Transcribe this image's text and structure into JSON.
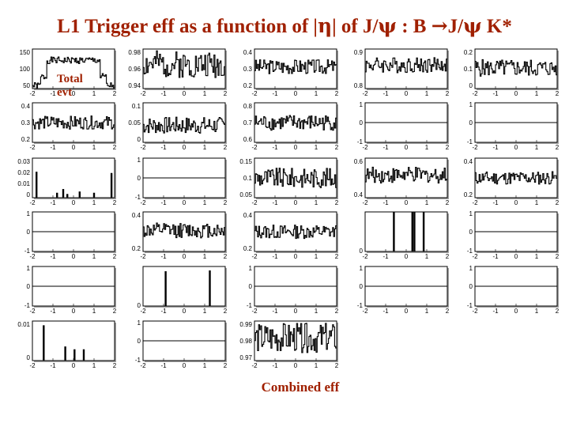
{
  "title": {
    "prefix": "L1 Trigger eff as a function of |",
    "eta": "η",
    "mid": "| of J/",
    "psi1": "ψ",
    "colon": " : B ",
    "arrow": "→",
    "jpsi": "J/",
    "psi2": "ψ",
    "suffix": " K*"
  },
  "overlay": {
    "line1": "Total",
    "line2": "evt"
  },
  "caption": "Combined eff",
  "colors": {
    "title": "#a02000",
    "line": "#000000",
    "frame": "#000000",
    "fill_shadow": "#a0a0a0"
  },
  "chart_data": {
    "type": "line",
    "x_ticks": [
      "-2",
      "-1",
      "0",
      "1",
      "2"
    ],
    "xlim": [
      -2,
      2
    ],
    "panels": [
      {
        "row": 0,
        "col": 0,
        "kind": "noise",
        "label": "Total evt",
        "yticks": [
          "150",
          "100",
          "50"
        ],
        "ylim": [
          30,
          170
        ],
        "profile": "plateau",
        "mean": 130,
        "amp": 12,
        "seed": 1
      },
      {
        "row": 0,
        "col": 1,
        "kind": "noise",
        "yticks": [
          "0.98",
          "0.96",
          "0.94"
        ],
        "ylim": [
          0.935,
          1.0
        ],
        "profile": "flat",
        "mean": 0.975,
        "amp": 0.022,
        "seed": 2
      },
      {
        "row": 0,
        "col": 2,
        "kind": "noise",
        "yticks": [
          "0.4",
          "0.3",
          "0.2"
        ],
        "ylim": [
          0.15,
          0.42
        ],
        "profile": "flat",
        "mean": 0.3,
        "amp": 0.05,
        "seed": 3
      },
      {
        "row": 0,
        "col": 3,
        "kind": "noise",
        "yticks": [
          "0.9",
          "0.8"
        ],
        "ylim": [
          0.75,
          0.95
        ],
        "profile": "flat",
        "mean": 0.87,
        "amp": 0.04,
        "seed": 4
      },
      {
        "row": 0,
        "col": 4,
        "kind": "noise",
        "yticks": [
          "0.2",
          "0.1",
          "0"
        ],
        "ylim": [
          0,
          0.23
        ],
        "profile": "flat",
        "mean": 0.12,
        "amp": 0.05,
        "seed": 5
      },
      {
        "row": 1,
        "col": 0,
        "kind": "noise",
        "yticks": [
          "0.4",
          "0.3",
          "0.2"
        ],
        "ylim": [
          0.15,
          0.45
        ],
        "profile": "flat",
        "mean": 0.3,
        "amp": 0.05,
        "seed": 6
      },
      {
        "row": 1,
        "col": 1,
        "kind": "noise",
        "yticks": [
          "0.1",
          "0.05",
          "0"
        ],
        "ylim": [
          0,
          0.14
        ],
        "profile": "flat",
        "mean": 0.06,
        "amp": 0.03,
        "seed": 7
      },
      {
        "row": 1,
        "col": 2,
        "kind": "noise",
        "yticks": [
          "0.8",
          "0.7",
          "0.6"
        ],
        "ylim": [
          0.55,
          0.85
        ],
        "profile": "flat",
        "mean": 0.7,
        "amp": 0.06,
        "seed": 8
      },
      {
        "row": 1,
        "col": 3,
        "kind": "empty",
        "yticks": [
          "1",
          "0",
          "-1"
        ],
        "ylim": [
          -1,
          1
        ]
      },
      {
        "row": 1,
        "col": 4,
        "kind": "empty",
        "yticks": [
          "1",
          "0",
          "-1"
        ],
        "ylim": [
          -1,
          1
        ]
      },
      {
        "row": 2,
        "col": 0,
        "kind": "spikes",
        "yticks": [
          "0.03",
          "0.02",
          "0.01",
          "0"
        ],
        "ylim": [
          0,
          0.032
        ],
        "spikes": [
          [
            -1.8,
            0.021
          ],
          [
            -0.8,
            0.004
          ],
          [
            -0.5,
            0.007
          ],
          [
            -0.3,
            0.003
          ],
          [
            0.3,
            0.005
          ],
          [
            1.0,
            0.004
          ],
          [
            1.85,
            0.02
          ]
        ]
      },
      {
        "row": 2,
        "col": 1,
        "kind": "empty",
        "yticks": [
          "1",
          "0",
          "-1"
        ],
        "ylim": [
          -1,
          1
        ]
      },
      {
        "row": 2,
        "col": 2,
        "kind": "noise",
        "yticks": [
          "0.15",
          "0.1",
          "0.05"
        ],
        "ylim": [
          0,
          0.18
        ],
        "profile": "flat",
        "mean": 0.09,
        "amp": 0.045,
        "seed": 9
      },
      {
        "row": 2,
        "col": 3,
        "kind": "noise",
        "yticks": [
          "0.6",
          "0.4"
        ],
        "ylim": [
          0.3,
          0.65
        ],
        "profile": "flat",
        "mean": 0.5,
        "amp": 0.07,
        "seed": 10
      },
      {
        "row": 2,
        "col": 4,
        "kind": "noise",
        "yticks": [
          "0.4",
          "0.2"
        ],
        "ylim": [
          0.15,
          0.45
        ],
        "profile": "flat",
        "mean": 0.3,
        "amp": 0.05,
        "seed": 11
      },
      {
        "row": 3,
        "col": 0,
        "kind": "empty",
        "yticks": [
          "1",
          "0",
          "-1"
        ],
        "ylim": [
          -1,
          1
        ]
      },
      {
        "row": 3,
        "col": 1,
        "kind": "noise",
        "yticks": [
          "0.4",
          "0.2"
        ],
        "ylim": [
          0.18,
          0.5
        ],
        "profile": "flat",
        "mean": 0.35,
        "amp": 0.06,
        "seed": 12
      },
      {
        "row": 3,
        "col": 2,
        "kind": "noise",
        "yticks": [
          "0.4",
          "0.2"
        ],
        "ylim": [
          0.1,
          0.5
        ],
        "profile": "flat",
        "mean": 0.3,
        "amp": 0.07,
        "seed": 13
      },
      {
        "row": 3,
        "col": 3,
        "kind": "spikes",
        "yticks": [
          "0"
        ],
        "ylim": [
          0,
          1
        ],
        "spikes": [
          [
            -0.6,
            1.0
          ],
          [
            0.3,
            1.0
          ],
          [
            0.4,
            1.0
          ],
          [
            0.85,
            1.0
          ]
        ]
      },
      {
        "row": 3,
        "col": 4,
        "kind": "empty",
        "yticks": [
          "1",
          "0",
          "-1"
        ],
        "ylim": [
          -1,
          1
        ]
      },
      {
        "row": 4,
        "col": 0,
        "kind": "empty",
        "yticks": [
          "1",
          "0",
          "-1"
        ],
        "ylim": [
          -1,
          1
        ]
      },
      {
        "row": 4,
        "col": 1,
        "kind": "spikes",
        "yticks": [
          "0"
        ],
        "ylim": [
          0,
          1
        ],
        "spikes": [
          [
            -0.9,
            0.88
          ],
          [
            1.25,
            0.9
          ]
        ]
      },
      {
        "row": 4,
        "col": 2,
        "kind": "empty",
        "yticks": [
          "1",
          "0",
          "-1"
        ],
        "ylim": [
          -1,
          1
        ]
      },
      {
        "row": 4,
        "col": 3,
        "kind": "empty",
        "yticks": [
          "1",
          "0",
          "-1"
        ],
        "ylim": [
          -1,
          1
        ]
      },
      {
        "row": 4,
        "col": 4,
        "kind": "empty",
        "yticks": [
          "1",
          "0",
          "-1"
        ],
        "ylim": [
          -1,
          1
        ]
      },
      {
        "row": 5,
        "col": 0,
        "kind": "spikes",
        "yticks": [
          "0.01",
          "0"
        ],
        "ylim": [
          0,
          0.014
        ],
        "spikes": [
          [
            -1.45,
            0.0125
          ],
          [
            -0.4,
            0.005
          ],
          [
            0.05,
            0.004
          ],
          [
            0.5,
            0.004
          ]
        ]
      },
      {
        "row": 5,
        "col": 1,
        "kind": "empty",
        "yticks": [
          "1",
          "0",
          "-1"
        ],
        "ylim": [
          -1,
          1
        ]
      },
      {
        "row": 5,
        "col": 2,
        "kind": "noise",
        "yticks": [
          "0.99",
          "0.98",
          "0.97"
        ],
        "ylim": [
          0.965,
          1.0
        ],
        "profile": "flat",
        "mean": 0.985,
        "amp": 0.013,
        "seed": 14
      }
    ]
  }
}
